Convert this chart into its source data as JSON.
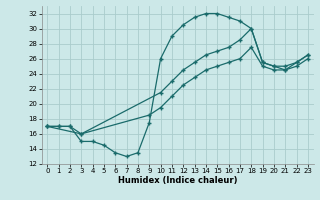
{
  "xlabel": "Humidex (Indice chaleur)",
  "background_color": "#cce8e8",
  "grid_color": "#aacccc",
  "line_color": "#1a6b6b",
  "xlim": [
    -0.5,
    23.5
  ],
  "ylim": [
    12,
    33
  ],
  "xticks": [
    0,
    1,
    2,
    3,
    4,
    5,
    6,
    7,
    8,
    9,
    10,
    11,
    12,
    13,
    14,
    15,
    16,
    17,
    18,
    19,
    20,
    21,
    22,
    23
  ],
  "yticks": [
    12,
    14,
    16,
    18,
    20,
    22,
    24,
    26,
    28,
    30,
    32
  ],
  "line1_x": [
    0,
    1,
    2,
    3,
    4,
    5,
    6,
    7,
    8,
    9,
    10,
    11,
    12,
    13,
    14,
    15,
    16,
    17,
    18,
    19,
    20,
    21,
    22,
    23
  ],
  "line1_y": [
    17.0,
    17.0,
    17.0,
    15.0,
    15.0,
    14.5,
    13.5,
    13.0,
    13.5,
    17.5,
    26.0,
    29.0,
    30.5,
    31.5,
    32.0,
    32.0,
    31.5,
    31.0,
    30.0,
    25.5,
    25.0,
    24.5,
    25.5,
    26.5
  ],
  "line2_x": [
    0,
    1,
    2,
    3,
    10,
    11,
    12,
    13,
    14,
    15,
    16,
    17,
    18,
    19,
    20,
    21,
    22,
    23
  ],
  "line2_y": [
    17.0,
    17.0,
    17.0,
    16.0,
    21.5,
    23.0,
    24.5,
    25.5,
    26.5,
    27.0,
    27.5,
    28.5,
    30.0,
    25.5,
    25.0,
    25.0,
    25.5,
    26.5
  ],
  "line3_x": [
    0,
    3,
    9,
    10,
    11,
    12,
    13,
    14,
    15,
    16,
    17,
    18,
    19,
    20,
    21,
    22,
    23
  ],
  "line3_y": [
    17.0,
    16.0,
    18.5,
    19.5,
    21.0,
    22.5,
    23.5,
    24.5,
    25.0,
    25.5,
    26.0,
    27.5,
    25.0,
    24.5,
    24.5,
    25.0,
    26.0
  ]
}
